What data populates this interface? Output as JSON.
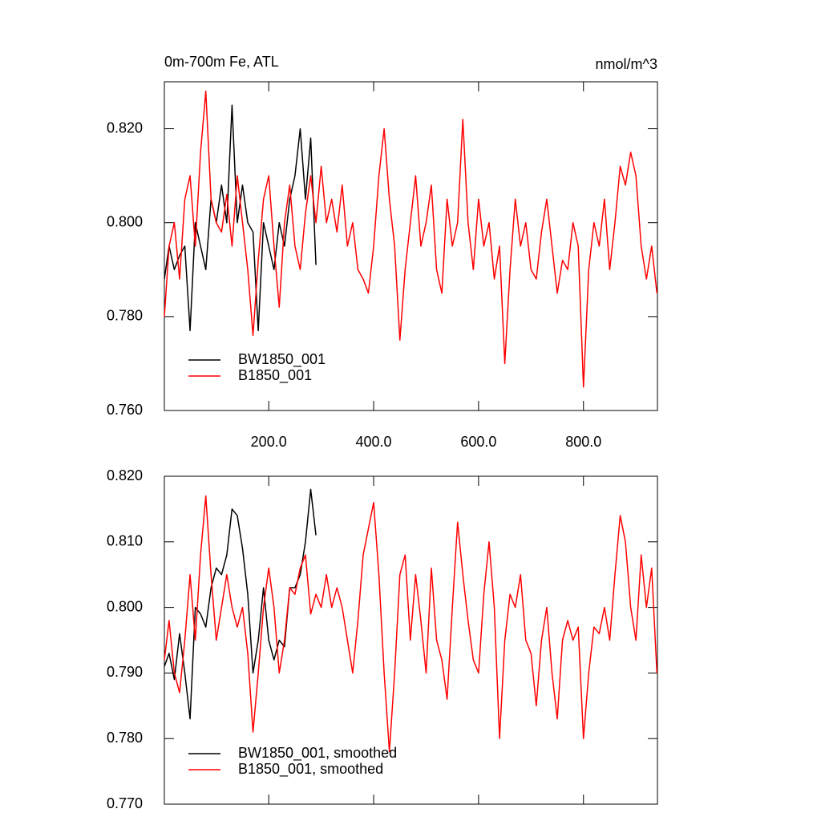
{
  "chart_data": [
    {
      "type": "line",
      "title": "0m-700m Fe, ATL",
      "units": "nmol/m^3",
      "xlim": [
        1,
        941
      ],
      "ylim": [
        0.76,
        0.83
      ],
      "xticks": [
        {
          "value": 200,
          "label": "200.0"
        },
        {
          "value": 400,
          "label": "400.0"
        },
        {
          "value": 600,
          "label": "600.0"
        },
        {
          "value": 800,
          "label": "800.0"
        }
      ],
      "yticks": [
        {
          "value": 0.76,
          "label": "0.760"
        },
        {
          "value": 0.78,
          "label": "0.780"
        },
        {
          "value": 0.8,
          "label": "0.800"
        },
        {
          "value": 0.82,
          "label": "0.820"
        }
      ],
      "legend": "lower left",
      "series": [
        {
          "name": "BW1850_001",
          "color": "#000000",
          "x": [
            1,
            10,
            20,
            30,
            40,
            50,
            60,
            70,
            80,
            90,
            100,
            110,
            120,
            130,
            140,
            150,
            160,
            170,
            180,
            190,
            200,
            210,
            220,
            230,
            240,
            250,
            260,
            270,
            280,
            290
          ],
          "values": [
            0.788,
            0.795,
            0.79,
            0.793,
            0.795,
            0.777,
            0.8,
            0.795,
            0.79,
            0.805,
            0.8,
            0.808,
            0.8,
            0.825,
            0.8,
            0.808,
            0.8,
            0.798,
            0.777,
            0.8,
            0.795,
            0.79,
            0.8,
            0.795,
            0.805,
            0.81,
            0.82,
            0.805,
            0.818,
            0.791
          ]
        },
        {
          "name": "B1850_001",
          "color": "#ff0000",
          "x": [
            1,
            10,
            20,
            30,
            40,
            50,
            60,
            70,
            80,
            90,
            100,
            110,
            120,
            130,
            140,
            150,
            160,
            170,
            180,
            190,
            200,
            210,
            220,
            230,
            240,
            250,
            260,
            270,
            280,
            290,
            300,
            310,
            320,
            330,
            340,
            350,
            360,
            370,
            380,
            390,
            400,
            410,
            420,
            430,
            440,
            450,
            460,
            470,
            480,
            490,
            500,
            510,
            520,
            530,
            540,
            550,
            560,
            570,
            580,
            590,
            600,
            610,
            620,
            630,
            640,
            650,
            660,
            670,
            680,
            690,
            700,
            710,
            720,
            730,
            740,
            750,
            760,
            770,
            780,
            790,
            800,
            810,
            820,
            830,
            840,
            850,
            860,
            870,
            880,
            890,
            900,
            910,
            920,
            930,
            940
          ],
          "values": [
            0.78,
            0.795,
            0.8,
            0.788,
            0.805,
            0.81,
            0.795,
            0.815,
            0.828,
            0.805,
            0.8,
            0.798,
            0.806,
            0.795,
            0.81,
            0.8,
            0.79,
            0.776,
            0.792,
            0.805,
            0.81,
            0.795,
            0.782,
            0.8,
            0.808,
            0.795,
            0.79,
            0.802,
            0.81,
            0.8,
            0.812,
            0.8,
            0.805,
            0.798,
            0.808,
            0.795,
            0.8,
            0.79,
            0.788,
            0.785,
            0.795,
            0.81,
            0.82,
            0.805,
            0.795,
            0.775,
            0.79,
            0.8,
            0.81,
            0.795,
            0.8,
            0.808,
            0.79,
            0.785,
            0.805,
            0.795,
            0.8,
            0.822,
            0.8,
            0.79,
            0.805,
            0.795,
            0.8,
            0.788,
            0.795,
            0.77,
            0.79,
            0.805,
            0.795,
            0.8,
            0.79,
            0.788,
            0.798,
            0.805,
            0.795,
            0.785,
            0.792,
            0.79,
            0.8,
            0.795,
            0.765,
            0.79,
            0.8,
            0.795,
            0.805,
            0.79,
            0.8,
            0.812,
            0.808,
            0.815,
            0.81,
            0.795,
            0.788,
            0.795,
            0.785
          ]
        }
      ]
    },
    {
      "type": "line",
      "xlim": [
        1,
        941
      ],
      "ylim": [
        0.77,
        0.82
      ],
      "xticks": [
        200,
        400,
        600,
        800
      ],
      "xtick_labels": false,
      "yticks": [
        {
          "value": 0.77,
          "label": "0.770"
        },
        {
          "value": 0.78,
          "label": "0.780"
        },
        {
          "value": 0.79,
          "label": "0.790"
        },
        {
          "value": 0.8,
          "label": "0.800"
        },
        {
          "value": 0.81,
          "label": "0.810"
        },
        {
          "value": 0.82,
          "label": "0.820"
        }
      ],
      "legend": "lower left",
      "series": [
        {
          "name": "BW1850_001, smoothed",
          "color": "#000000",
          "x": [
            1,
            10,
            20,
            30,
            40,
            50,
            60,
            70,
            80,
            90,
            100,
            110,
            120,
            130,
            140,
            150,
            160,
            170,
            180,
            190,
            200,
            210,
            220,
            230,
            240,
            250,
            260,
            270,
            280,
            290
          ],
          "values": [
            0.791,
            0.793,
            0.789,
            0.796,
            0.79,
            0.783,
            0.8,
            0.799,
            0.797,
            0.803,
            0.806,
            0.805,
            0.808,
            0.815,
            0.814,
            0.809,
            0.802,
            0.79,
            0.795,
            0.803,
            0.795,
            0.792,
            0.795,
            0.794,
            0.803,
            0.803,
            0.805,
            0.81,
            0.818,
            0.811
          ]
        },
        {
          "name": "B1850_001, smoothed",
          "color": "#ff0000",
          "x": [
            1,
            10,
            20,
            30,
            40,
            50,
            60,
            70,
            80,
            90,
            100,
            110,
            120,
            130,
            140,
            150,
            160,
            170,
            180,
            190,
            200,
            210,
            220,
            230,
            240,
            250,
            260,
            270,
            280,
            290,
            300,
            310,
            320,
            330,
            340,
            350,
            360,
            370,
            380,
            390,
            400,
            410,
            420,
            430,
            440,
            450,
            460,
            470,
            480,
            490,
            500,
            510,
            520,
            530,
            540,
            550,
            560,
            570,
            580,
            590,
            600,
            610,
            620,
            630,
            640,
            650,
            660,
            670,
            680,
            690,
            700,
            710,
            720,
            730,
            740,
            750,
            760,
            770,
            780,
            790,
            800,
            810,
            820,
            830,
            840,
            850,
            860,
            870,
            880,
            890,
            900,
            910,
            920,
            930,
            940
          ],
          "values": [
            0.792,
            0.798,
            0.79,
            0.787,
            0.795,
            0.805,
            0.795,
            0.808,
            0.817,
            0.805,
            0.795,
            0.8,
            0.805,
            0.8,
            0.797,
            0.8,
            0.793,
            0.781,
            0.79,
            0.8,
            0.806,
            0.8,
            0.79,
            0.795,
            0.803,
            0.802,
            0.806,
            0.808,
            0.799,
            0.802,
            0.8,
            0.805,
            0.8,
            0.803,
            0.8,
            0.795,
            0.79,
            0.798,
            0.808,
            0.812,
            0.816,
            0.805,
            0.79,
            0.778,
            0.79,
            0.805,
            0.808,
            0.795,
            0.805,
            0.798,
            0.79,
            0.806,
            0.795,
            0.792,
            0.786,
            0.8,
            0.813,
            0.805,
            0.798,
            0.792,
            0.79,
            0.802,
            0.81,
            0.8,
            0.78,
            0.795,
            0.802,
            0.8,
            0.805,
            0.795,
            0.793,
            0.785,
            0.795,
            0.8,
            0.79,
            0.783,
            0.795,
            0.798,
            0.795,
            0.797,
            0.78,
            0.79,
            0.797,
            0.796,
            0.8,
            0.795,
            0.805,
            0.814,
            0.81,
            0.8,
            0.795,
            0.808,
            0.8,
            0.806,
            0.79
          ]
        }
      ]
    }
  ]
}
